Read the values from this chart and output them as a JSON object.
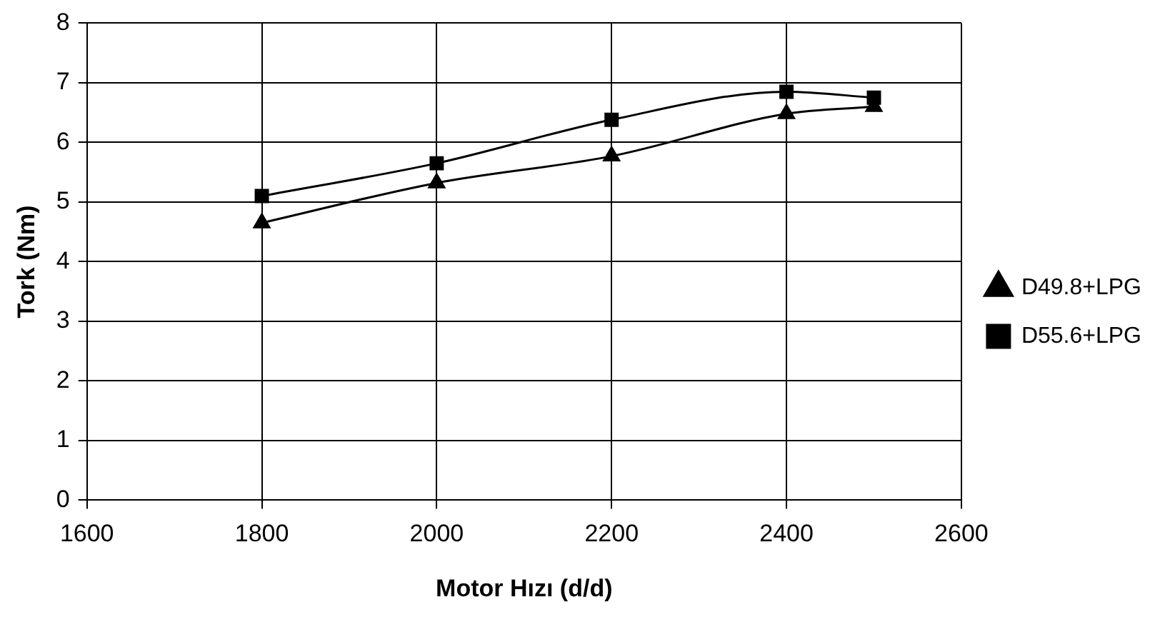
{
  "chart_data": {
    "type": "line",
    "xlabel": "Motor Hızı (d/d)",
    "ylabel": "Tork (Nm)",
    "x": [
      1800,
      2000,
      2200,
      2400,
      2500
    ],
    "series": [
      {
        "name": "D49.8+LPG",
        "color": "#000000",
        "marker": "triangle",
        "values": [
          4.65,
          5.32,
          5.77,
          6.48,
          6.6
        ]
      },
      {
        "name": "D55.6+LPG",
        "color": "#000000",
        "marker": "square",
        "values": [
          5.1,
          5.65,
          6.38,
          6.85,
          6.75
        ]
      }
    ],
    "xlim": [
      1600,
      2600
    ],
    "xticks": [
      1600,
      1800,
      2000,
      2200,
      2400,
      2600
    ],
    "ylim": [
      0,
      8
    ],
    "yticks": [
      0,
      1,
      2,
      3,
      4,
      5,
      6,
      7,
      8
    ],
    "grid": true,
    "legend": "right",
    "line_style": "solid"
  }
}
